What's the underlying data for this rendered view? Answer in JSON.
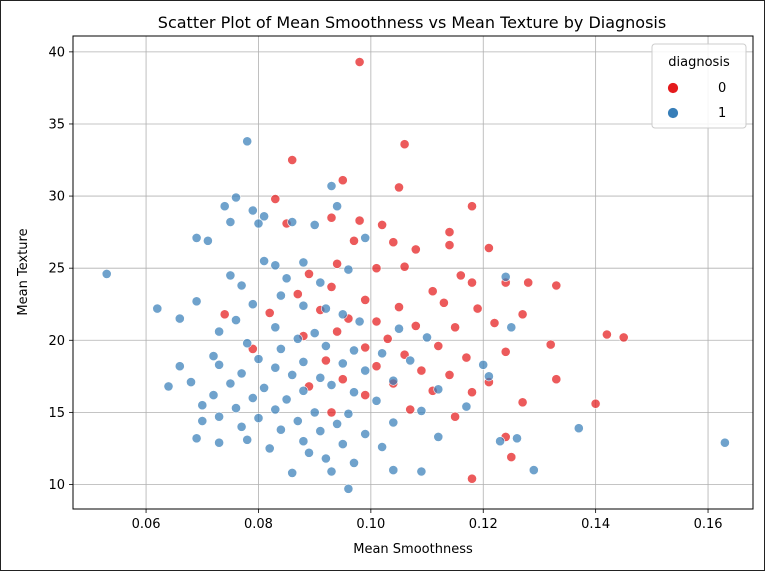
{
  "chart_data": {
    "type": "scatter",
    "title": "Scatter Plot of Mean Smoothness vs Mean Texture by Diagnosis",
    "xlabel": "Mean Smoothness",
    "ylabel": "Mean Texture",
    "xlim": [
      0.047,
      0.168
    ],
    "ylim": [
      8.3,
      41.1
    ],
    "xticks": [
      0.06,
      0.08,
      0.1,
      0.12,
      0.14,
      0.16
    ],
    "xtick_labels": [
      "0.06",
      "0.08",
      "0.10",
      "0.12",
      "0.14",
      "0.16"
    ],
    "yticks": [
      10,
      15,
      20,
      25,
      30,
      35,
      40
    ],
    "ytick_labels": [
      "10",
      "15",
      "20",
      "25",
      "30",
      "35",
      "40"
    ],
    "grid": true,
    "legend": {
      "title": "diagnosis",
      "placement": "top-right",
      "entries": [
        {
          "label": "0",
          "color": "#e41a1c"
        },
        {
          "label": "1",
          "color": "#377eb8"
        }
      ]
    },
    "series": [
      {
        "name": "0",
        "color": "#e41a1c",
        "points": [
          [
            0.098,
            39.3
          ],
          [
            0.086,
            32.5
          ],
          [
            0.106,
            33.6
          ],
          [
            0.095,
            31.1
          ],
          [
            0.105,
            30.6
          ],
          [
            0.083,
            29.8
          ],
          [
            0.118,
            29.3
          ],
          [
            0.093,
            28.5
          ],
          [
            0.085,
            28.1
          ],
          [
            0.098,
            28.3
          ],
          [
            0.102,
            28.0
          ],
          [
            0.114,
            27.5
          ],
          [
            0.097,
            26.9
          ],
          [
            0.104,
            26.8
          ],
          [
            0.114,
            26.6
          ],
          [
            0.121,
            26.4
          ],
          [
            0.108,
            26.3
          ],
          [
            0.094,
            25.3
          ],
          [
            0.101,
            25.0
          ],
          [
            0.106,
            25.1
          ],
          [
            0.089,
            24.6
          ],
          [
            0.116,
            24.5
          ],
          [
            0.118,
            24.0
          ],
          [
            0.124,
            24.0
          ],
          [
            0.128,
            24.0
          ],
          [
            0.133,
            23.8
          ],
          [
            0.111,
            23.4
          ],
          [
            0.093,
            23.7
          ],
          [
            0.087,
            23.2
          ],
          [
            0.099,
            22.8
          ],
          [
            0.105,
            22.3
          ],
          [
            0.113,
            22.6
          ],
          [
            0.119,
            22.2
          ],
          [
            0.091,
            22.1
          ],
          [
            0.082,
            21.9
          ],
          [
            0.074,
            21.8
          ],
          [
            0.096,
            21.5
          ],
          [
            0.101,
            21.3
          ],
          [
            0.108,
            21.0
          ],
          [
            0.115,
            20.9
          ],
          [
            0.122,
            21.2
          ],
          [
            0.127,
            21.8
          ],
          [
            0.094,
            20.6
          ],
          [
            0.088,
            20.3
          ],
          [
            0.103,
            20.1
          ],
          [
            0.142,
            20.4
          ],
          [
            0.145,
            20.2
          ],
          [
            0.132,
            19.7
          ],
          [
            0.112,
            19.6
          ],
          [
            0.099,
            19.5
          ],
          [
            0.079,
            19.4
          ],
          [
            0.106,
            19.0
          ],
          [
            0.117,
            18.8
          ],
          [
            0.124,
            19.2
          ],
          [
            0.092,
            18.6
          ],
          [
            0.101,
            18.2
          ],
          [
            0.109,
            17.9
          ],
          [
            0.114,
            17.6
          ],
          [
            0.133,
            17.3
          ],
          [
            0.095,
            17.3
          ],
          [
            0.104,
            17.0
          ],
          [
            0.121,
            17.1
          ],
          [
            0.089,
            16.8
          ],
          [
            0.111,
            16.5
          ],
          [
            0.118,
            16.4
          ],
          [
            0.099,
            16.2
          ],
          [
            0.127,
            15.7
          ],
          [
            0.14,
            15.6
          ],
          [
            0.107,
            15.2
          ],
          [
            0.093,
            15.0
          ],
          [
            0.115,
            14.7
          ],
          [
            0.124,
            13.3
          ],
          [
            0.125,
            11.9
          ],
          [
            0.118,
            10.4
          ]
        ]
      },
      {
        "name": "1",
        "color": "#377eb8",
        "points": [
          [
            0.078,
            33.8
          ],
          [
            0.093,
            30.7
          ],
          [
            0.076,
            29.9
          ],
          [
            0.079,
            29.0
          ],
          [
            0.074,
            29.3
          ],
          [
            0.081,
            28.6
          ],
          [
            0.094,
            29.3
          ],
          [
            0.075,
            28.2
          ],
          [
            0.08,
            28.1
          ],
          [
            0.086,
            28.2
          ],
          [
            0.09,
            28.0
          ],
          [
            0.069,
            27.1
          ],
          [
            0.071,
            26.9
          ],
          [
            0.099,
            27.1
          ],
          [
            0.081,
            25.5
          ],
          [
            0.088,
            25.4
          ],
          [
            0.083,
            25.2
          ],
          [
            0.096,
            24.9
          ],
          [
            0.053,
            24.6
          ],
          [
            0.075,
            24.5
          ],
          [
            0.124,
            24.4
          ],
          [
            0.085,
            24.3
          ],
          [
            0.091,
            24.0
          ],
          [
            0.077,
            23.8
          ],
          [
            0.084,
            23.1
          ],
          [
            0.069,
            22.7
          ],
          [
            0.079,
            22.5
          ],
          [
            0.088,
            22.4
          ],
          [
            0.092,
            22.2
          ],
          [
            0.062,
            22.2
          ],
          [
            0.095,
            21.8
          ],
          [
            0.066,
            21.5
          ],
          [
            0.076,
            21.4
          ],
          [
            0.098,
            21.3
          ],
          [
            0.083,
            20.9
          ],
          [
            0.105,
            20.8
          ],
          [
            0.125,
            20.9
          ],
          [
            0.073,
            20.6
          ],
          [
            0.09,
            20.5
          ],
          [
            0.087,
            20.1
          ],
          [
            0.11,
            20.2
          ],
          [
            0.078,
            19.8
          ],
          [
            0.092,
            19.6
          ],
          [
            0.084,
            19.4
          ],
          [
            0.097,
            19.3
          ],
          [
            0.102,
            19.1
          ],
          [
            0.072,
            18.9
          ],
          [
            0.08,
            18.7
          ],
          [
            0.088,
            18.5
          ],
          [
            0.095,
            18.4
          ],
          [
            0.107,
            18.6
          ],
          [
            0.066,
            18.2
          ],
          [
            0.073,
            18.3
          ],
          [
            0.083,
            18.1
          ],
          [
            0.099,
            17.9
          ],
          [
            0.12,
            18.3
          ],
          [
            0.077,
            17.7
          ],
          [
            0.086,
            17.6
          ],
          [
            0.091,
            17.4
          ],
          [
            0.104,
            17.2
          ],
          [
            0.121,
            17.5
          ],
          [
            0.068,
            17.1
          ],
          [
            0.075,
            17.0
          ],
          [
            0.093,
            16.9
          ],
          [
            0.064,
            16.8
          ],
          [
            0.081,
            16.7
          ],
          [
            0.088,
            16.5
          ],
          [
            0.097,
            16.4
          ],
          [
            0.112,
            16.6
          ],
          [
            0.072,
            16.2
          ],
          [
            0.079,
            16.0
          ],
          [
            0.085,
            15.9
          ],
          [
            0.101,
            15.8
          ],
          [
            0.07,
            15.5
          ],
          [
            0.076,
            15.3
          ],
          [
            0.083,
            15.2
          ],
          [
            0.09,
            15.0
          ],
          [
            0.096,
            14.9
          ],
          [
            0.109,
            15.1
          ],
          [
            0.117,
            15.4
          ],
          [
            0.073,
            14.7
          ],
          [
            0.08,
            14.6
          ],
          [
            0.087,
            14.4
          ],
          [
            0.094,
            14.2
          ],
          [
            0.104,
            14.3
          ],
          [
            0.07,
            14.4
          ],
          [
            0.077,
            14.0
          ],
          [
            0.084,
            13.8
          ],
          [
            0.091,
            13.7
          ],
          [
            0.099,
            13.5
          ],
          [
            0.112,
            13.3
          ],
          [
            0.137,
            13.9
          ],
          [
            0.069,
            13.2
          ],
          [
            0.078,
            13.1
          ],
          [
            0.088,
            13.0
          ],
          [
            0.095,
            12.8
          ],
          [
            0.102,
            12.6
          ],
          [
            0.073,
            12.9
          ],
          [
            0.082,
            12.5
          ],
          [
            0.089,
            12.2
          ],
          [
            0.123,
            13.0
          ],
          [
            0.126,
            13.2
          ],
          [
            0.092,
            11.8
          ],
          [
            0.097,
            11.5
          ],
          [
            0.086,
            10.8
          ],
          [
            0.093,
            10.9
          ],
          [
            0.104,
            11.0
          ],
          [
            0.109,
            10.9
          ],
          [
            0.129,
            11.0
          ],
          [
            0.096,
            9.7
          ],
          [
            0.163,
            12.9
          ]
        ]
      }
    ]
  }
}
